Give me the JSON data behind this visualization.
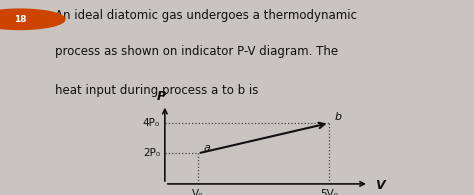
{
  "title_lines": [
    "An ideal diatomic gas undergoes a thermodynamic",
    "process as shown on indicator P-V diagram. The",
    "heat input during process a to b is"
  ],
  "point_a": [
    1,
    2
  ],
  "point_b": [
    5,
    4
  ],
  "x_ticks": [
    1,
    5
  ],
  "x_tick_labels": [
    "V₀",
    "5V₀"
  ],
  "y_ticks": [
    2,
    4
  ],
  "y_tick_labels": [
    "2P₀",
    "4P₀"
  ],
  "xlim": [
    -0.4,
    6.8
  ],
  "ylim": [
    -0.6,
    5.8
  ],
  "bg_color": "#c8c4c0",
  "text_color": "#111111",
  "line_color": "#111111",
  "dot_color": "#444444",
  "axis_label_x": "V",
  "axis_label_y": "P",
  "font_size_text": 8.5,
  "font_size_labels": 7.5,
  "font_size_axis": 9
}
